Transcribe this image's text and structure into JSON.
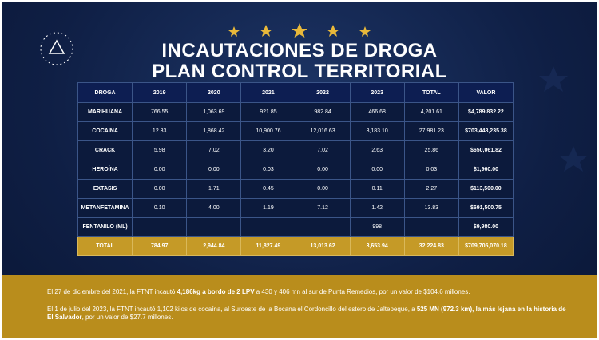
{
  "header": {
    "title_lines": [
      "INCAUTACIONES DE DROGA",
      "PLAN CONTROL TERRITORIAL"
    ]
  },
  "table": {
    "columns": [
      "DROGA",
      "2019",
      "2020",
      "2021",
      "2022",
      "2023",
      "TOTAL",
      "VALOR"
    ],
    "rows": [
      [
        "MARIHUANA",
        "766.55",
        "1,063.69",
        "921.85",
        "982.84",
        "466.68",
        "4,201.61",
        "$4,789,832.22"
      ],
      [
        "COCAINA",
        "12.33",
        "1,868.42",
        "10,900.76",
        "12,016.63",
        "3,183.10",
        "27,981.23",
        "$703,448,235.38"
      ],
      [
        "CRACK",
        "5.98",
        "7.02",
        "3.20",
        "7.02",
        "2.63",
        "25.86",
        "$650,061.82"
      ],
      [
        "HEROÍNA",
        "0.00",
        "0.00",
        "0.03",
        "0.00",
        "0.00",
        "0.03",
        "$1,960.00"
      ],
      [
        "EXTASIS",
        "0.00",
        "1.71",
        "0.45",
        "0.00",
        "0.11",
        "2.27",
        "$113,500.00"
      ],
      [
        "METANFETAMINA",
        "0.10",
        "4.00",
        "1.19",
        "7.12",
        "1.42",
        "13.83",
        "$691,500.75"
      ],
      [
        "FENTANILO (ML)",
        null,
        null,
        null,
        null,
        "998",
        null,
        "$9,980.00"
      ]
    ],
    "total_row": [
      "TOTAL",
      "784.97",
      "2,944.84",
      "11,827.49",
      "13,013.62",
      "3,653.94",
      "32,224.83",
      "$709,705,070.18"
    ]
  },
  "footer": {
    "paragraphs": [
      [
        {
          "text": "El 27 de diciembre del 2021, la FTNT incautó "
        },
        {
          "text": "4,186kg a bordo de 2 LPV",
          "bold": true
        },
        {
          "text": " a 430 y 406 mn al sur de Punta Remedios, por un valor de $104.6 millones."
        }
      ],
      [
        {
          "text": "El 1 de julio del 2023, la FTNT incautó 1,102 kilos de cocaína, al Suroeste de la Bocana el Cordoncillo del estero de Jaltepeque, a "
        },
        {
          "text": "525 MN (972.3 km), la más lejana en la historia de El Salvador",
          "bold": true
        },
        {
          "text": ", por un valor de $27.7 millones."
        }
      ]
    ]
  }
}
